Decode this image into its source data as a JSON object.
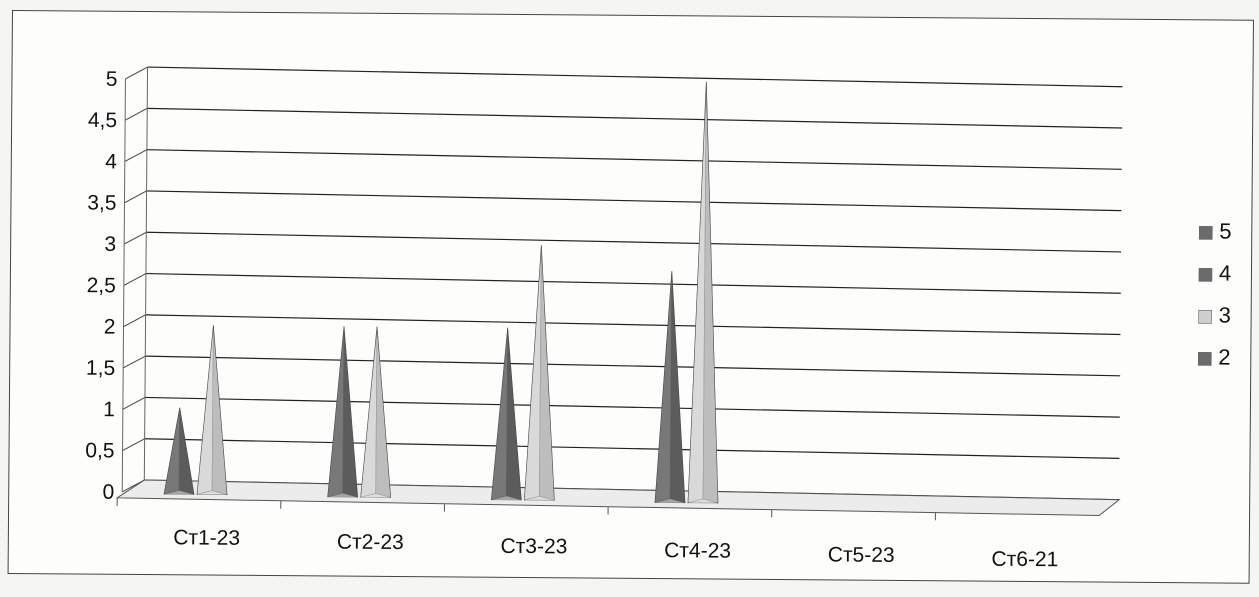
{
  "chart_data": {
    "type": "bar",
    "shape": "3d-pyramid",
    "categories": [
      "Ст1-23",
      "Ст2-23",
      "Ст3-23",
      "Ст4-23",
      "Ст5-23",
      "Ст6-21"
    ],
    "series": [
      {
        "name": "2",
        "values": [
          1,
          2,
          2,
          2.7,
          0,
          0
        ],
        "color": "#6b6b6b"
      },
      {
        "name": "3",
        "values": [
          2,
          2,
          3,
          5,
          0,
          0
        ],
        "color": "#cfcfcf"
      }
    ],
    "legend_entries": [
      {
        "name": "5",
        "color": "#6b6b6b"
      },
      {
        "name": "4",
        "color": "#6b6b6b"
      },
      {
        "name": "3",
        "color": "#cfcfcf"
      },
      {
        "name": "2",
        "color": "#6b6b6b"
      }
    ],
    "y_ticks": [
      "0",
      "0,5",
      "1",
      "1,5",
      "2",
      "2,5",
      "3",
      "3,5",
      "4",
      "4,5",
      "5"
    ],
    "ylim": [
      0,
      5
    ],
    "grid": true,
    "legend_position": "right",
    "title": "",
    "xlabel": "",
    "ylabel": ""
  }
}
